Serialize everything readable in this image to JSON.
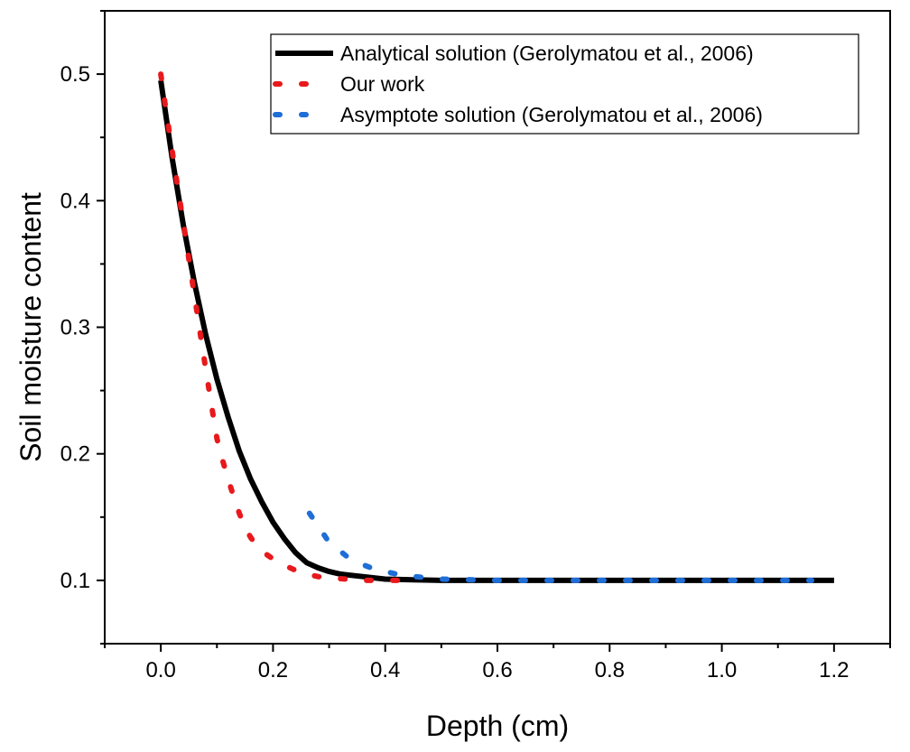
{
  "chart_data": {
    "type": "line",
    "title": "",
    "xlabel": "Depth (cm)",
    "ylabel": "Soil moisture content",
    "xlim": [
      -0.1,
      1.3
    ],
    "ylim": [
      0.05,
      0.55
    ],
    "xticks": [
      0.0,
      0.2,
      0.4,
      0.6,
      0.8,
      1.0,
      1.2
    ],
    "xtick_labels": [
      "0.0",
      "0.2",
      "0.4",
      "0.6",
      "0.8",
      "1.0",
      "1.2"
    ],
    "yticks": [
      0.1,
      0.2,
      0.3,
      0.4,
      0.5
    ],
    "ytick_labels": [
      "0.1",
      "0.2",
      "0.3",
      "0.4",
      "0.5"
    ],
    "grid": false,
    "legend_position": "top-right",
    "series": [
      {
        "name": "Analytical solution (Gerolymatou et al., 2006)",
        "style": "solid",
        "color": "#000000",
        "x": [
          0.0,
          0.02,
          0.04,
          0.06,
          0.08,
          0.1,
          0.12,
          0.14,
          0.16,
          0.18,
          0.2,
          0.22,
          0.24,
          0.26,
          0.28,
          0.3,
          0.32,
          0.34,
          0.36,
          0.4,
          0.45,
          0.5,
          0.6,
          0.8,
          1.0,
          1.2
        ],
        "y": [
          0.495,
          0.434,
          0.381,
          0.335,
          0.294,
          0.259,
          0.229,
          0.202,
          0.18,
          0.162,
          0.146,
          0.133,
          0.122,
          0.114,
          0.11,
          0.107,
          0.105,
          0.104,
          0.103,
          0.101,
          0.1005,
          0.1,
          0.1,
          0.1,
          0.1,
          0.1
        ]
      },
      {
        "name": "Our work",
        "style": "dashed",
        "color": "#e8191c",
        "x": [
          0.0,
          0.01,
          0.02,
          0.03,
          0.04,
          0.05,
          0.06,
          0.07,
          0.08,
          0.09,
          0.1,
          0.11,
          0.12,
          0.13,
          0.14,
          0.15,
          0.16,
          0.17,
          0.18,
          0.19,
          0.2,
          0.22,
          0.24,
          0.26,
          0.28,
          0.3,
          0.33,
          0.36,
          0.4,
          0.43
        ],
        "y": [
          0.5,
          0.469,
          0.44,
          0.411,
          0.383,
          0.354,
          0.325,
          0.296,
          0.267,
          0.239,
          0.212,
          0.195,
          0.18,
          0.166,
          0.153,
          0.142,
          0.134,
          0.128,
          0.124,
          0.12,
          0.117,
          0.112,
          0.108,
          0.105,
          0.103,
          0.102,
          0.101,
          0.1,
          0.1,
          0.1
        ]
      },
      {
        "name": "Asymptote solution (Gerolymatou et al., 2006)",
        "style": "dashed",
        "color": "#1f6ed8",
        "x": [
          0.265,
          0.3,
          0.34,
          0.38,
          0.43,
          0.5,
          0.6,
          0.7,
          0.8,
          0.9,
          1.0,
          1.1,
          1.16
        ],
        "y": [
          0.153,
          0.13,
          0.116,
          0.109,
          0.104,
          0.101,
          0.1,
          0.1,
          0.1,
          0.1,
          0.1,
          0.1,
          0.1
        ]
      }
    ]
  }
}
